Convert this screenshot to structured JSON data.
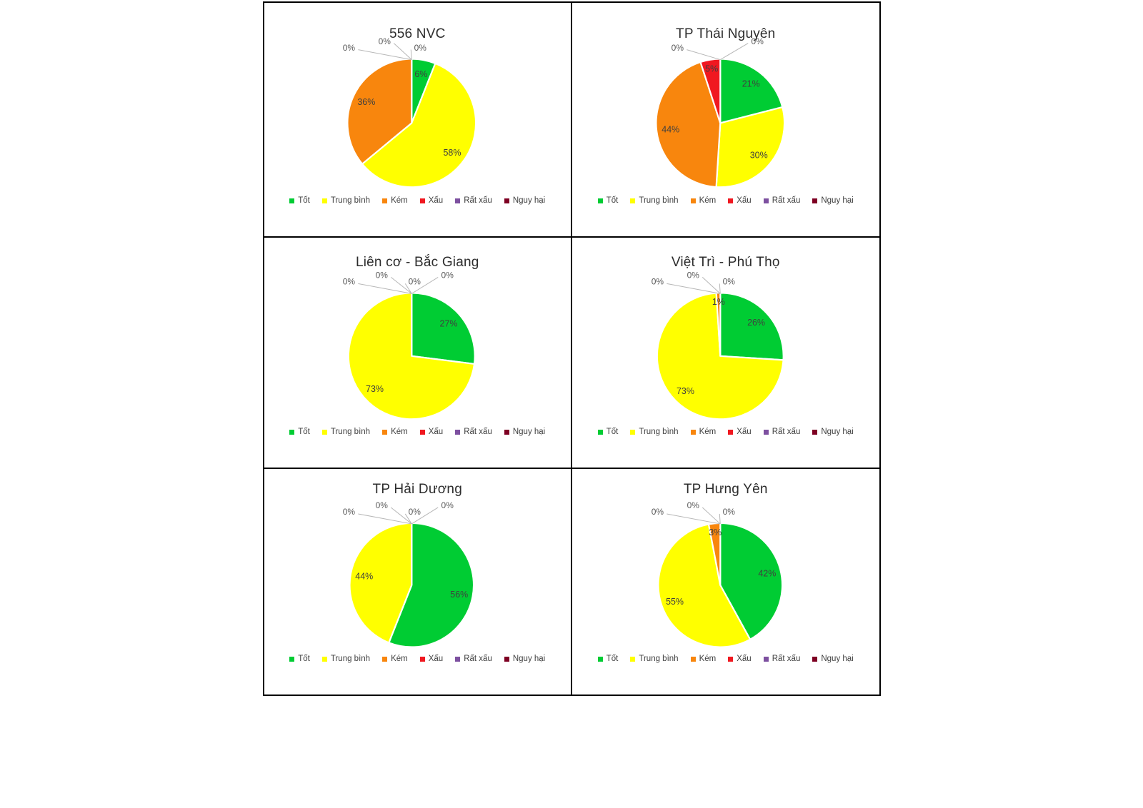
{
  "canvas": {
    "background": "#ffffff",
    "grid_border_color": "#000000",
    "label_color": "#3f3f3f",
    "zero_label_color": "#595959",
    "leader_line_color": "#b7b7b7"
  },
  "chart_data": [
    {
      "type": "pie",
      "title": "556 NVC",
      "categories": [
        "Tốt",
        "Trung bình",
        "Kém",
        "Xấu",
        "Rất xấu",
        "Nguy hại"
      ],
      "values": [
        6,
        58,
        36,
        0,
        0,
        0
      ],
      "labels": [
        "6%",
        "58%",
        "36%",
        "0%",
        "0%",
        "0%"
      ],
      "colors": [
        "#00CC33",
        "#FFFF00",
        "#F8860D",
        "#F01820",
        "#7D50A0",
        "#7E0023"
      ],
      "legend_position": "bottom",
      "start_angle_deg": 0,
      "direction": "clockwise"
    },
    {
      "type": "pie",
      "title": "TP Thái Nguyên",
      "categories": [
        "Tốt",
        "Trung bình",
        "Kém",
        "Xấu",
        "Rất xấu",
        "Nguy hại"
      ],
      "values": [
        21,
        30,
        44,
        5,
        0,
        0
      ],
      "labels": [
        "21%",
        "30%",
        "44%",
        "5%",
        "0%",
        "0%"
      ],
      "colors": [
        "#00CC33",
        "#FFFF00",
        "#F8860D",
        "#F01820",
        "#7D50A0",
        "#7E0023"
      ],
      "legend_position": "bottom",
      "start_angle_deg": 0,
      "direction": "clockwise"
    },
    {
      "type": "pie",
      "title": "Liên cơ - Bắc Giang",
      "categories": [
        "Tốt",
        "Trung bình",
        "Kém",
        "Xấu",
        "Rất xấu",
        "Nguy hại"
      ],
      "values": [
        27,
        73,
        0,
        0,
        0,
        0
      ],
      "labels": [
        "27%",
        "73%",
        "0%",
        "0%",
        "0%",
        "0%"
      ],
      "colors": [
        "#00CC33",
        "#FFFF00",
        "#F8860D",
        "#F01820",
        "#7D50A0",
        "#7E0023"
      ],
      "legend_position": "bottom",
      "start_angle_deg": 0,
      "direction": "clockwise"
    },
    {
      "type": "pie",
      "title": "Việt Trì - Phú Thọ",
      "categories": [
        "Tốt",
        "Trung bình",
        "Kém",
        "Xấu",
        "Rất xấu",
        "Nguy hại"
      ],
      "values": [
        26,
        73,
        1,
        0,
        0,
        0
      ],
      "labels": [
        "26%",
        "73%",
        "1%",
        "0%",
        "0%",
        "0%"
      ],
      "colors": [
        "#00CC33",
        "#FFFF00",
        "#F8860D",
        "#F01820",
        "#7D50A0",
        "#7E0023"
      ],
      "legend_position": "bottom",
      "start_angle_deg": 0,
      "direction": "clockwise"
    },
    {
      "type": "pie",
      "title": "TP Hải Dương",
      "categories": [
        "Tốt",
        "Trung bình",
        "Kém",
        "Xấu",
        "Rất xấu",
        "Nguy hại"
      ],
      "values": [
        56,
        44,
        0,
        0,
        0,
        0
      ],
      "labels": [
        "56%",
        "44%",
        "0%",
        "0%",
        "0%",
        "0%"
      ],
      "colors": [
        "#00CC33",
        "#FFFF00",
        "#F8860D",
        "#F01820",
        "#7D50A0",
        "#7E0023"
      ],
      "legend_position": "bottom",
      "start_angle_deg": 0,
      "direction": "clockwise"
    },
    {
      "type": "pie",
      "title": "TP Hưng Yên",
      "categories": [
        "Tốt",
        "Trung bình",
        "Kém",
        "Xấu",
        "Rất xấu",
        "Nguy hại"
      ],
      "values": [
        42,
        55,
        3,
        0,
        0,
        0
      ],
      "labels": [
        "42%",
        "55%",
        "3%",
        "0%",
        "0%",
        "0%"
      ],
      "colors": [
        "#00CC33",
        "#FFFF00",
        "#F8860D",
        "#F01820",
        "#7D50A0",
        "#7E0023"
      ],
      "legend_position": "bottom",
      "start_angle_deg": 0,
      "direction": "clockwise"
    }
  ]
}
